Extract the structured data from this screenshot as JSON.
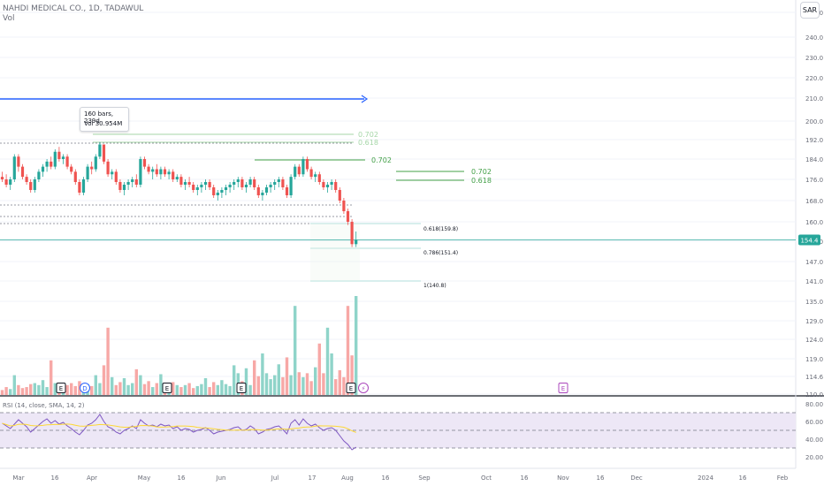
{
  "header": {
    "title": "NAHDI MEDICAL CO., 1D, TADAWUL",
    "volume_label": "Vol",
    "currency": "SAR"
  },
  "tooltip": {
    "bars": "160 bars, 239d",
    "volume": "Vol 30.954M"
  },
  "rsi": {
    "label": "RSI (14, close, SMA, 14, 2)",
    "ticks": [
      "80.00",
      "60.00",
      "40.00",
      "20.00"
    ],
    "tick_values": [
      80,
      60,
      40,
      20
    ],
    "upper_band": 70,
    "mid_band": 50,
    "lower_band": 30
  },
  "price_axis": {
    "ticks": [
      "250.0",
      "240.0",
      "230.0",
      "220.0",
      "210.0",
      "200.0",
      "192.0",
      "184.0",
      "176.0",
      "168.0",
      "160.0",
      "154.0",
      "147.0",
      "141.0",
      "135.0",
      "129.0",
      "124.0",
      "119.0",
      "114.6",
      "110.0"
    ],
    "last_price": "154.4"
  },
  "time_axis": {
    "labels": [
      "Mar",
      "16",
      "Apr",
      "May",
      "16",
      "Jun",
      "Jul",
      "17",
      "Aug",
      "16",
      "Sep",
      "Oct",
      "16",
      "Nov",
      "16",
      "Dec",
      "2024",
      "16",
      "Feb"
    ]
  },
  "fib_levels": [
    {
      "label": "0.702",
      "color": "#a5d6a7"
    },
    {
      "label": "0.618",
      "color": "#a5d6a7"
    },
    {
      "label": "0.702",
      "color": "#43a047"
    },
    {
      "label": "0.702",
      "color": "#43a047"
    },
    {
      "label": "0.618",
      "color": "#43a047"
    },
    {
      "label": "0.618(159.8)",
      "color": "#131722"
    },
    {
      "label": "0.786(151.4)",
      "color": "#131722"
    },
    {
      "label": "1(140.8)",
      "color": "#131722"
    }
  ],
  "event_markers": [
    {
      "glyph": "E",
      "type": "earnings"
    },
    {
      "glyph": "D",
      "type": "dividend"
    },
    {
      "glyph": "E",
      "type": "earnings"
    },
    {
      "glyph": "E",
      "type": "earnings"
    },
    {
      "glyph": "E",
      "type": "earnings"
    },
    {
      "glyph": "⚡",
      "type": "news"
    },
    {
      "glyph": "E",
      "type": "earnings-future"
    }
  ],
  "colors": {
    "up": "#26a69a",
    "down": "#ef5350",
    "vol_up": "#8fd4c9",
    "vol_down": "#f7a8a6",
    "rsi_line": "#7e57c2",
    "rsi_ma": "#fdd835",
    "rsi_band": "#ede7f6",
    "trend_line": "#2962ff",
    "last_price": "#26a69a"
  },
  "chart_data": {
    "type": "candlestick",
    "title": "NAHDI MEDICAL CO., 1D, TADAWUL",
    "currency": "SAR",
    "last_price": 154.4,
    "ylim": [
      110,
      252
    ],
    "series": [
      {
        "name": "price",
        "ohlc": [
          [
            177,
            179,
            175,
            176
          ],
          [
            176,
            178,
            173,
            174
          ],
          [
            174,
            177,
            172,
            176
          ],
          [
            176,
            186,
            175,
            185
          ],
          [
            185,
            186,
            179,
            181
          ],
          [
            181,
            182,
            176,
            177
          ],
          [
            177,
            178,
            174,
            175
          ],
          [
            175,
            176,
            171,
            172
          ],
          [
            172,
            177,
            171,
            176
          ],
          [
            176,
            180,
            175,
            179
          ],
          [
            179,
            182,
            177,
            181
          ],
          [
            181,
            184,
            179,
            183
          ],
          [
            183,
            185,
            180,
            181
          ],
          [
            181,
            188,
            180,
            187
          ],
          [
            187,
            189,
            183,
            184
          ],
          [
            184,
            186,
            182,
            185
          ],
          [
            185,
            186,
            180,
            181
          ],
          [
            181,
            182,
            178,
            179
          ],
          [
            179,
            180,
            174,
            175
          ],
          [
            175,
            176,
            170,
            171
          ],
          [
            171,
            177,
            170,
            176
          ],
          [
            176,
            182,
            175,
            181
          ],
          [
            181,
            183,
            178,
            180
          ],
          [
            180,
            186,
            179,
            185
          ],
          [
            185,
            191,
            184,
            190
          ],
          [
            190,
            190,
            182,
            183
          ],
          [
            183,
            184,
            177,
            178
          ],
          [
            178,
            180,
            176,
            179
          ],
          [
            179,
            180,
            174,
            175
          ],
          [
            175,
            176,
            171,
            172
          ],
          [
            172,
            175,
            170,
            174
          ],
          [
            174,
            176,
            172,
            175
          ],
          [
            175,
            177,
            173,
            176
          ],
          [
            176,
            178,
            173,
            174
          ],
          [
            174,
            185,
            173,
            184
          ],
          [
            184,
            185,
            180,
            181
          ],
          [
            181,
            182,
            178,
            179
          ],
          [
            179,
            181,
            176,
            180
          ],
          [
            180,
            182,
            177,
            178
          ],
          [
            178,
            181,
            176,
            180
          ],
          [
            180,
            181,
            177,
            178
          ],
          [
            178,
            180,
            176,
            179
          ],
          [
            179,
            180,
            175,
            176
          ],
          [
            176,
            178,
            175,
            177
          ],
          [
            177,
            178,
            173,
            174
          ],
          [
            174,
            176,
            172,
            175
          ],
          [
            175,
            177,
            173,
            174
          ],
          [
            174,
            175,
            171,
            172
          ],
          [
            172,
            174,
            170,
            173
          ],
          [
            173,
            175,
            171,
            174
          ],
          [
            174,
            176,
            172,
            175
          ],
          [
            175,
            176,
            172,
            173
          ],
          [
            173,
            174,
            169,
            170
          ],
          [
            170,
            172,
            168,
            171
          ],
          [
            171,
            173,
            169,
            172
          ],
          [
            172,
            174,
            170,
            173
          ],
          [
            173,
            175,
            171,
            174
          ],
          [
            174,
            176,
            172,
            175
          ],
          [
            175,
            177,
            173,
            176
          ],
          [
            176,
            177,
            172,
            173
          ],
          [
            173,
            175,
            171,
            174
          ],
          [
            174,
            177,
            173,
            176
          ],
          [
            176,
            177,
            172,
            173
          ],
          [
            173,
            174,
            169,
            170
          ],
          [
            170,
            172,
            168,
            171
          ],
          [
            171,
            174,
            170,
            173
          ],
          [
            173,
            175,
            171,
            174
          ],
          [
            174,
            176,
            172,
            175
          ],
          [
            175,
            177,
            173,
            176
          ],
          [
            176,
            177,
            172,
            173
          ],
          [
            173,
            174,
            169,
            170
          ],
          [
            170,
            178,
            169,
            177
          ],
          [
            177,
            182,
            176,
            181
          ],
          [
            181,
            182,
            177,
            178
          ],
          [
            178,
            185,
            177,
            184
          ],
          [
            184,
            185,
            179,
            180
          ],
          [
            180,
            181,
            176,
            177
          ],
          [
            177,
            179,
            175,
            178
          ],
          [
            178,
            179,
            174,
            175
          ],
          [
            175,
            176,
            172,
            173
          ],
          [
            173,
            175,
            171,
            174
          ],
          [
            174,
            176,
            172,
            175
          ],
          [
            175,
            176,
            171,
            172
          ],
          [
            172,
            173,
            167,
            168
          ],
          [
            168,
            169,
            163,
            164
          ],
          [
            164,
            165,
            159,
            160
          ],
          [
            160,
            161,
            152,
            153
          ],
          [
            153,
            157,
            152,
            154.4
          ]
        ]
      },
      {
        "name": "Vol",
        "volume_relative": [
          0.05,
          0.08,
          0.06,
          0.2,
          0.1,
          0.07,
          0.08,
          0.11,
          0.12,
          0.1,
          0.15,
          0.08,
          0.35,
          0.12,
          0.09,
          0.08,
          0.1,
          0.12,
          0.09,
          0.14,
          0.1,
          0.11,
          0.09,
          0.2,
          0.12,
          0.3,
          0.68,
          0.18,
          0.1,
          0.13,
          0.17,
          0.1,
          0.12,
          0.26,
          0.2,
          0.11,
          0.14,
          0.08,
          0.12,
          0.21,
          0.11,
          0.09,
          0.13,
          0.1,
          0.08,
          0.1,
          0.12,
          0.07,
          0.09,
          0.11,
          0.17,
          0.08,
          0.13,
          0.1,
          0.15,
          0.11,
          0.09,
          0.3,
          0.22,
          0.14,
          0.27,
          0.1,
          0.35,
          0.19,
          0.42,
          0.22,
          0.16,
          0.2,
          0.31,
          0.18,
          0.38,
          0.2,
          0.9,
          0.23,
          0.18,
          0.22,
          0.14,
          0.28,
          0.52,
          0.22,
          0.68,
          0.42,
          0.16,
          0.25,
          0.18,
          0.9,
          0.4,
          1.0
        ]
      },
      {
        "name": "RSI",
        "values": [
          58,
          55,
          52,
          57,
          62,
          58,
          54,
          48,
          52,
          56,
          60,
          63,
          58,
          61,
          57,
          59,
          55,
          52,
          48,
          45,
          50,
          56,
          58,
          62,
          68,
          60,
          54,
          52,
          48,
          46,
          50,
          52,
          55,
          52,
          62,
          58,
          55,
          56,
          54,
          57,
          55,
          56,
          52,
          54,
          50,
          52,
          51,
          48,
          50,
          51,
          53,
          50,
          46,
          48,
          49,
          50,
          51,
          53,
          54,
          50,
          51,
          55,
          52,
          46,
          48,
          51,
          52,
          54,
          55,
          51,
          46,
          58,
          62,
          56,
          63,
          58,
          55,
          57,
          53,
          50,
          52,
          53,
          50,
          44,
          38,
          34,
          28,
          31
        ]
      }
    ]
  }
}
